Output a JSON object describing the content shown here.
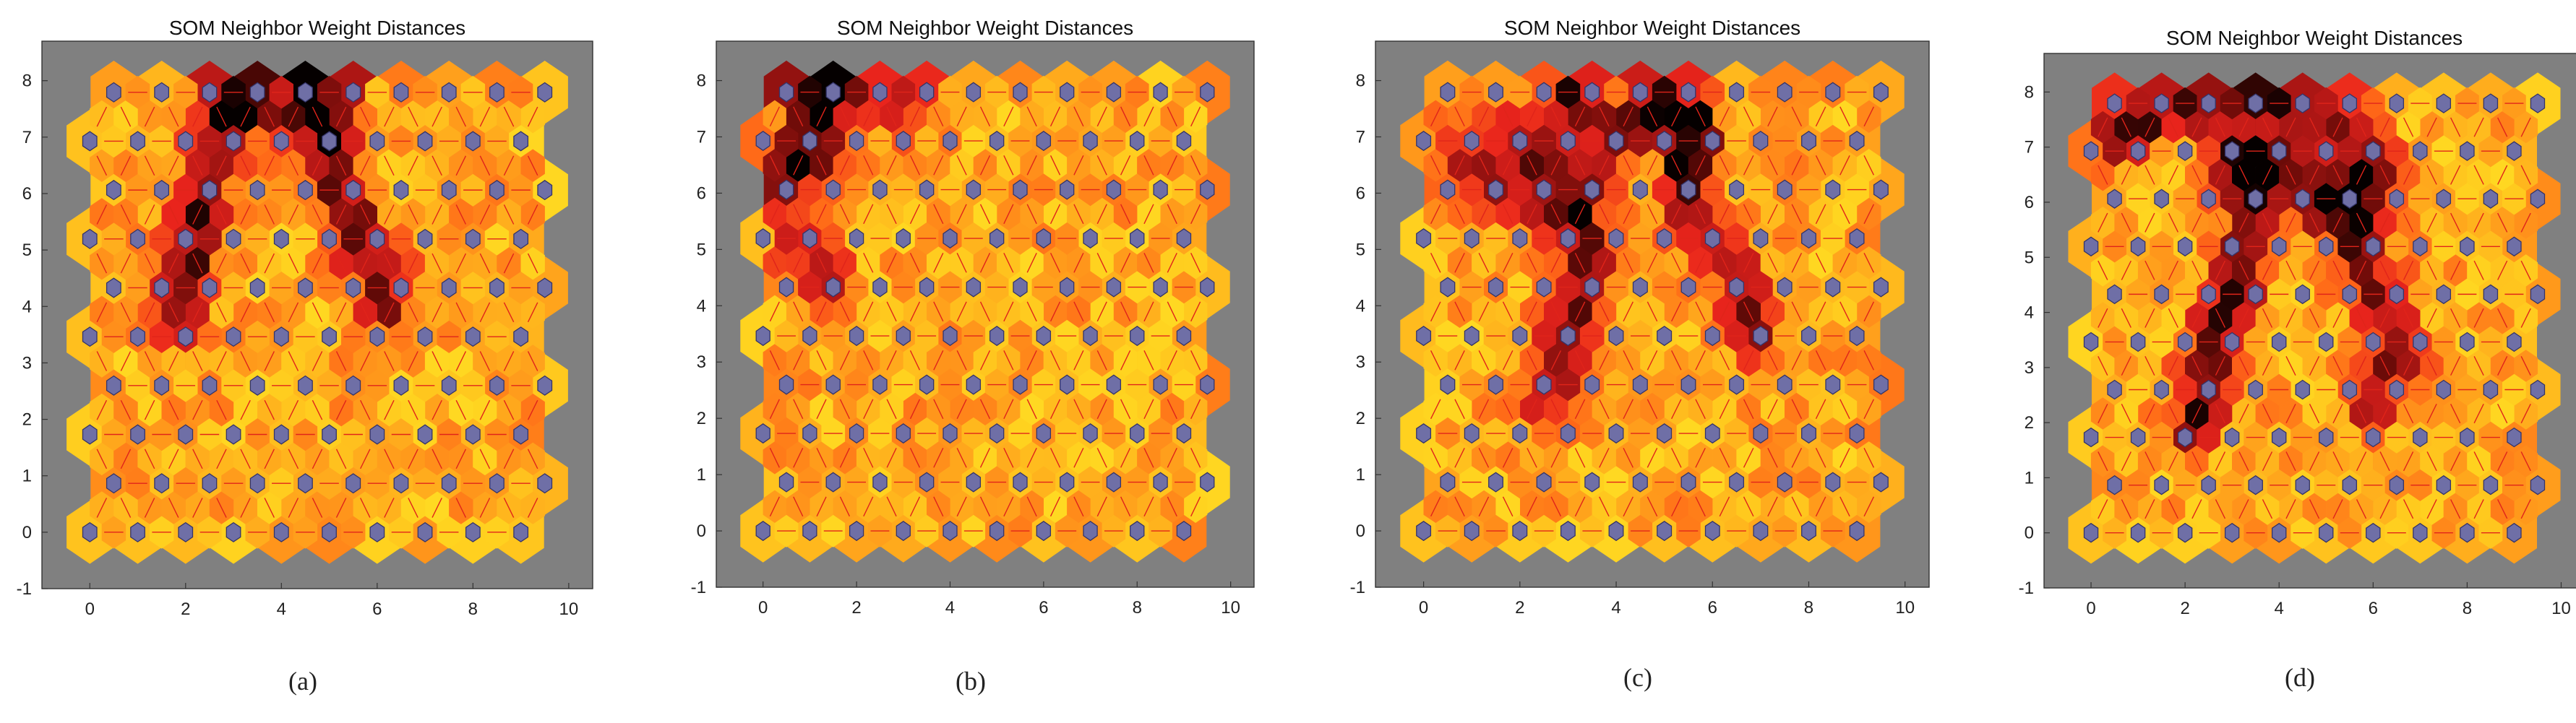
{
  "figure": {
    "subcaptions": [
      "(a)",
      "(b)",
      "(c)",
      "(d)"
    ]
  },
  "colors": {
    "background": "#808080",
    "neuron": "#6f6fa6",
    "neuron_stroke": "#34346a",
    "link": "#e0241a",
    "distance_scale": [
      "#ffff33",
      "#ffd21f",
      "#ffa31c",
      "#ff6a18",
      "#e9241c",
      "#b61816",
      "#6a0b08",
      "#050000"
    ]
  },
  "chart_data": [
    {
      "type": "heatmap",
      "title": "SOM Neighbor Weight Distances",
      "xlim": [
        -1,
        10.5
      ],
      "ylim": [
        -1,
        8.7
      ],
      "xticks": [
        "0",
        "2",
        "4",
        "6",
        "8",
        "10"
      ],
      "yticks": [
        "-1",
        "0",
        "1",
        "2",
        "3",
        "4",
        "5",
        "6",
        "7",
        "8"
      ],
      "grid": {
        "rows": 10,
        "cols": 10,
        "topology": "hexagonal"
      },
      "seed": 11,
      "hot_paths": [
        {
          "points": [
            [
              3,
              7.8
            ],
            [
              2.5,
              6.5
            ],
            [
              2.2,
              5
            ],
            [
              1.8,
              3.9
            ]
          ],
          "intensity": 0.62
        },
        {
          "points": [
            [
              5,
              7.8
            ],
            [
              5,
              6.5
            ],
            [
              5.6,
              5.3
            ],
            [
              6.2,
              4.2
            ]
          ],
          "intensity": 0.58
        },
        {
          "points": [
            [
              3,
              7.8
            ],
            [
              4,
              7.3
            ],
            [
              5,
              7.8
            ]
          ],
          "intensity": 0.45
        }
      ],
      "hot_spots": [
        {
          "x": 3,
          "y": 7.8,
          "v": 0.97
        },
        {
          "x": 5,
          "y": 7.8,
          "v": 0.82
        },
        {
          "x": 2.3,
          "y": 5.1,
          "v": 0.72
        }
      ]
    },
    {
      "type": "heatmap",
      "title": "SOM Neighbor Weight Distances",
      "xlim": [
        -1,
        10.5
      ],
      "ylim": [
        -1,
        8.7
      ],
      "xticks": [
        "0",
        "2",
        "4",
        "6",
        "8",
        "10"
      ],
      "yticks": [
        "-1",
        "0",
        "1",
        "2",
        "3",
        "4",
        "5",
        "6",
        "7",
        "8"
      ],
      "grid": {
        "rows": 10,
        "cols": 10,
        "topology": "hexagonal"
      },
      "seed": 23,
      "hot_paths": [
        {
          "points": [
            [
              1,
              7.8
            ],
            [
              1.3,
              6.8
            ],
            [
              0.6,
              6.6
            ]
          ],
          "intensity": 0.65
        },
        {
          "points": [
            [
              1,
              7.8
            ],
            [
              2,
              7.8
            ],
            [
              3,
              7.6
            ]
          ],
          "intensity": 0.45
        },
        {
          "points": [
            [
              0.5,
              6.2
            ],
            [
              0.8,
              5
            ],
            [
              1.4,
              4.4
            ]
          ],
          "intensity": 0.35
        }
      ],
      "hot_spots": [
        {
          "x": 1,
          "y": 7.8,
          "v": 0.96
        },
        {
          "x": 1.5,
          "y": 7,
          "v": 0.8
        },
        {
          "x": 0.4,
          "y": 6.6,
          "v": 0.78
        }
      ]
    },
    {
      "type": "heatmap",
      "title": "SOM Neighbor Weight Distances",
      "xlim": [
        -1,
        10.5
      ],
      "ylim": [
        -1,
        8.7
      ],
      "xticks": [
        "0",
        "2",
        "4",
        "6",
        "8",
        "10"
      ],
      "yticks": [
        "-1",
        "0",
        "1",
        "2",
        "3",
        "4",
        "5",
        "6",
        "7",
        "8"
      ],
      "grid": {
        "rows": 10,
        "cols": 10,
        "topology": "hexagonal"
      },
      "seed": 37,
      "hot_paths": [
        {
          "points": [
            [
              3,
              7.8
            ],
            [
              4,
              7
            ],
            [
              5,
              7.8
            ],
            [
              5.6,
              7
            ]
          ],
          "intensity": 0.6
        },
        {
          "points": [
            [
              2,
              7
            ],
            [
              3.2,
              6
            ],
            [
              3.5,
              4.8
            ],
            [
              3,
              3.5
            ],
            [
              2.5,
              2.4
            ]
          ],
          "intensity": 0.55
        },
        {
          "points": [
            [
              5.5,
              7
            ],
            [
              5.5,
              5.5
            ],
            [
              6.5,
              4.5
            ],
            [
              6.8,
              3.6
            ]
          ],
          "intensity": 0.52
        },
        {
          "points": [
            [
              0.5,
              6.8
            ],
            [
              1.5,
              6.2
            ],
            [
              2.5,
              5.5
            ]
          ],
          "intensity": 0.4
        }
      ],
      "hot_spots": [
        {
          "x": 3,
          "y": 7.8,
          "v": 0.97
        },
        {
          "x": 5.5,
          "y": 7,
          "v": 0.93
        },
        {
          "x": 4,
          "y": 7,
          "v": 0.82
        }
      ]
    },
    {
      "type": "heatmap",
      "title": "SOM Neighbor Weight Distances",
      "xlim": [
        -1,
        10.5
      ],
      "ylim": [
        -1,
        8.7
      ],
      "xticks": [
        "0",
        "2",
        "4",
        "6",
        "8",
        "10"
      ],
      "yticks": [
        "-1",
        "0",
        "1",
        "2",
        "3",
        "4",
        "5",
        "6",
        "7",
        "8"
      ],
      "grid": {
        "rows": 10,
        "cols": 10,
        "topology": "hexagonal"
      },
      "seed": 53,
      "hot_paths": [
        {
          "points": [
            [
              0.5,
              7.2
            ],
            [
              2,
              7.8
            ],
            [
              4,
              7.8
            ],
            [
              5.5,
              7.4
            ],
            [
              6,
              6.5
            ]
          ],
          "intensity": 0.58
        },
        {
          "points": [
            [
              3.5,
              6.5
            ],
            [
              3.2,
              5
            ],
            [
              3,
              4.2
            ],
            [
              2.5,
              3.2
            ],
            [
              2.2,
              2
            ]
          ],
          "intensity": 0.58
        },
        {
          "points": [
            [
              5,
              6
            ],
            [
              5.8,
              5
            ],
            [
              6.2,
              4
            ],
            [
              6.5,
              3.2
            ],
            [
              6,
              2.4
            ]
          ],
          "intensity": 0.5
        },
        {
          "points": [
            [
              3,
              6.8
            ],
            [
              4.5,
              6.5
            ],
            [
              5.5,
              6
            ]
          ],
          "intensity": 0.45
        }
      ],
      "hot_spots": [
        {
          "x": 4,
          "y": 7.8,
          "v": 0.97
        },
        {
          "x": 3.1,
          "y": 4.5,
          "v": 0.98
        },
        {
          "x": 6.5,
          "y": 3.6,
          "v": 0.75
        }
      ]
    }
  ]
}
